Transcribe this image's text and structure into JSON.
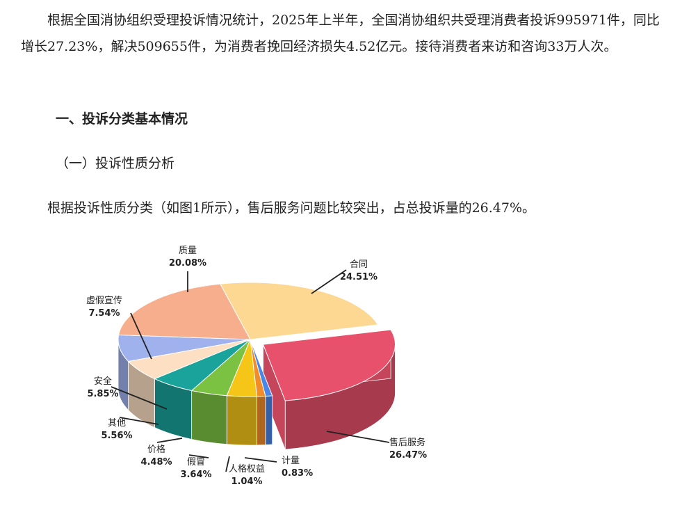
{
  "intro": "根据全国消协组织受理投诉情况统计，2025年上半年，全国消协组织共受理消费者投诉995971件，同比增长27.23%，解决509655件，为消费者挽回经济损失4.52亿元。接待消费者来访和咨询33万人次。",
  "section_title": "一、投诉分类基本情况",
  "subsection_title": "（一）投诉性质分析",
  "lead": "根据投诉性质分类（如图1所示），售后服务问题比较突出，占总投诉量的26.47%。",
  "chart_data": {
    "type": "pie",
    "title": "",
    "slices": [
      {
        "name": "售后服务",
        "value": 26.47,
        "label": "26.47%",
        "color": "#e8516b",
        "exploded": true
      },
      {
        "name": "计量",
        "value": 0.83,
        "label": "0.83%",
        "color": "#4a86e8"
      },
      {
        "name": "人格权益",
        "value": 1.04,
        "label": "1.04%",
        "color": "#f28c28"
      },
      {
        "name": "假冒",
        "value": 3.64,
        "label": "3.64%",
        "color": "#f5c518"
      },
      {
        "name": "价格",
        "value": 4.48,
        "label": "4.48%",
        "color": "#7cc242"
      },
      {
        "name": "其他",
        "value": 5.56,
        "label": "5.56%",
        "color": "#1aa39a"
      },
      {
        "name": "安全",
        "value": 5.85,
        "label": "5.85%",
        "color": "#fde0c4"
      },
      {
        "name": "虚假宣传",
        "value": 7.54,
        "label": "7.54%",
        "color": "#9fb2ee"
      },
      {
        "name": "质量",
        "value": 20.08,
        "label": "20.08%",
        "color": "#f6ae8c"
      },
      {
        "name": "合同",
        "value": 24.51,
        "label": "24.51%",
        "color": "#fcd893"
      }
    ]
  }
}
